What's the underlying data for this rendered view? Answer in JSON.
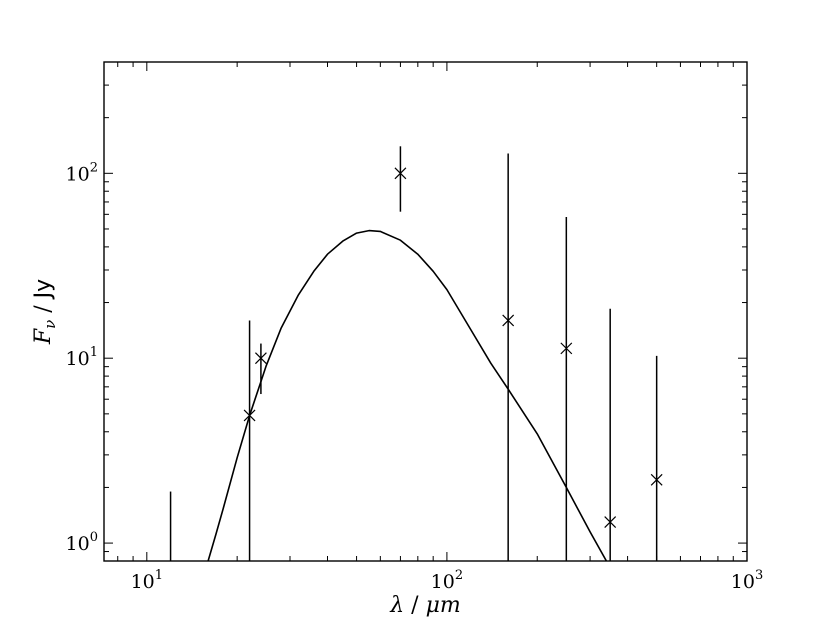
{
  "chart_data": {
    "type": "scatter",
    "x_scale": "log",
    "y_scale": "log",
    "xlim": [
      7.2,
      1000
    ],
    "ylim": [
      0.8,
      400
    ],
    "xlabel": {
      "symbol": "λ",
      "unit": "μm"
    },
    "ylabel": {
      "symbol": "F",
      "subscript": "ν",
      "unit": "Jy"
    },
    "x_ticks": [
      {
        "value": 10,
        "base": "10",
        "exp": "1"
      },
      {
        "value": 100,
        "base": "10",
        "exp": "2"
      },
      {
        "value": 1000,
        "base": "10",
        "exp": "3"
      }
    ],
    "y_ticks": [
      {
        "value": 1,
        "base": "10",
        "exp": "0"
      },
      {
        "value": 10,
        "base": "10",
        "exp": "1"
      },
      {
        "value": 100,
        "base": "10",
        "exp": "2"
      }
    ],
    "grid": false,
    "legend": "none",
    "series": [
      {
        "kind": "errorbar-points",
        "marker": "x",
        "points": [
          {
            "x": 12,
            "y": null,
            "yerr_low": 0.8,
            "yerr_high": 1.9
          },
          {
            "x": 22,
            "y": 4.9,
            "yerr_low": 0.8,
            "yerr_high": 16
          },
          {
            "x": 24,
            "y": 10,
            "yerr_low": 6.4,
            "yerr_high": 12
          },
          {
            "x": 70,
            "y": 100,
            "yerr_low": 62,
            "yerr_high": 140
          },
          {
            "x": 160,
            "y": 16,
            "yerr_low": 0.8,
            "yerr_high": 128
          },
          {
            "x": 250,
            "y": 11.3,
            "yerr_low": 0.8,
            "yerr_high": 58
          },
          {
            "x": 350,
            "y": 1.3,
            "yerr_low": 0.8,
            "yerr_high": 18.5
          },
          {
            "x": 500,
            "y": 2.2,
            "yerr_low": 0.8,
            "yerr_high": 10.3
          }
        ]
      },
      {
        "kind": "model-curve",
        "x": [
          16,
          17,
          18,
          20,
          22,
          25,
          28,
          32,
          36,
          40,
          45,
          50,
          55,
          60,
          70,
          80,
          90,
          100,
          120,
          140,
          160,
          200,
          250,
          300,
          340
        ],
        "y": [
          0.8,
          1.12,
          1.55,
          2.9,
          4.9,
          9.1,
          14.5,
          22,
          29.5,
          36.5,
          43,
          47.5,
          49,
          48.5,
          43.5,
          36.5,
          29.5,
          23.5,
          14.3,
          9.4,
          6.8,
          3.9,
          2.0,
          1.15,
          0.8
        ]
      }
    ]
  }
}
